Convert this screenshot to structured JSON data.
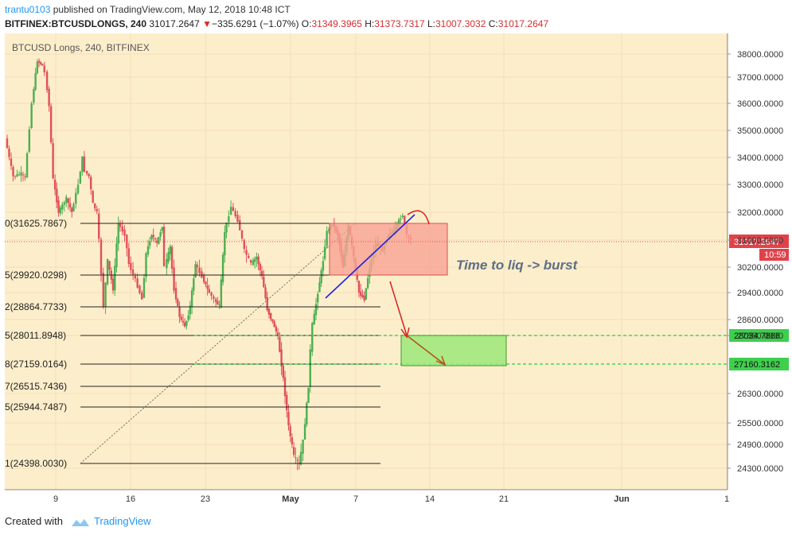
{
  "header": {
    "author": "trantu0103",
    "published_text": "published on TradingView.com, May 12, 2018 10:48 ICT",
    "symbol": "BITFINEX:BTCUSDLONGS, 240",
    "last": "31017.2647",
    "change_arrow": "▼",
    "change": "−335.6291 (−1.07%)",
    "o_label": "O:",
    "o_value": "31349.3965",
    "h_label": "H:",
    "h_value": "31373.7317",
    "l_label": "L:",
    "l_value": "31007.3032",
    "c_label": "C:",
    "c_value": "31017.2647"
  },
  "footer": {
    "created_with": "Created with",
    "brand": "TradingView"
  },
  "colors": {
    "background": "#fdeecb",
    "up": "#4caf50",
    "down": "#e0505a",
    "grid": "#f3dfb4"
  },
  "chart_data": {
    "type": "candlestick",
    "title": "BTCUSD Longs, 240, BITFINEX",
    "x_ticks": [
      "9",
      "16",
      "23",
      "May",
      "7",
      "14",
      "21",
      "Jun",
      "1"
    ],
    "y_ticks": [
      "38000.0000",
      "37000.0000",
      "36000.0000",
      "35000.0000",
      "34000.0000",
      "33000.0000",
      "32000.0000",
      "31000.0000",
      "30200.0000",
      "29400.0000",
      "28600.0000",
      "27850.0000",
      "26300.0000",
      "25500.0000",
      "24900.0000",
      "24300.0000"
    ],
    "ylim": [
      23600,
      38400
    ],
    "price_path": [
      [
        0,
        34700
      ],
      [
        6,
        33300
      ],
      [
        12,
        33400
      ],
      [
        15,
        33250
      ],
      [
        20,
        36000
      ],
      [
        24,
        37700
      ],
      [
        28,
        37500
      ],
      [
        30,
        37200
      ],
      [
        33,
        35900
      ],
      [
        36,
        33200
      ],
      [
        40,
        32000
      ],
      [
        46,
        32500
      ],
      [
        50,
        32000
      ],
      [
        55,
        33000
      ],
      [
        58,
        34000
      ],
      [
        60,
        33500
      ],
      [
        63,
        33300
      ],
      [
        66,
        32300
      ],
      [
        69,
        32000
      ],
      [
        74,
        29000
      ],
      [
        77,
        30400
      ],
      [
        81,
        29500
      ],
      [
        85,
        31600
      ],
      [
        90,
        31200
      ],
      [
        93,
        30300
      ],
      [
        98,
        29800
      ],
      [
        103,
        29200
      ],
      [
        106,
        30600
      ],
      [
        110,
        31200
      ],
      [
        114,
        30900
      ],
      [
        118,
        31500
      ],
      [
        120,
        30200
      ],
      [
        124,
        30800
      ],
      [
        127,
        29500
      ],
      [
        131,
        28700
      ],
      [
        135,
        28300
      ],
      [
        139,
        29000
      ],
      [
        143,
        30300
      ],
      [
        148,
        29900
      ],
      [
        152,
        29500
      ],
      [
        157,
        29200
      ],
      [
        161,
        29000
      ],
      [
        165,
        31300
      ],
      [
        170,
        32200
      ],
      [
        175,
        31700
      ],
      [
        180,
        30700
      ],
      [
        185,
        30300
      ],
      [
        189,
        30500
      ],
      [
        193,
        29900
      ],
      [
        197,
        28900
      ],
      [
        201,
        28500
      ],
      [
        205,
        27800
      ],
      [
        209,
        26700
      ],
      [
        213,
        25400
      ],
      [
        217,
        24600
      ],
      [
        221,
        24400
      ],
      [
        224,
        25000
      ],
      [
        228,
        26500
      ],
      [
        231,
        28400
      ],
      [
        235,
        29400
      ],
      [
        239,
        30400
      ],
      [
        242,
        31300
      ],
      [
        246,
        31600
      ],
      [
        250,
        31200
      ],
      [
        254,
        30200
      ],
      [
        258,
        31500
      ],
      [
        262,
        30500
      ],
      [
        266,
        29400
      ],
      [
        270,
        29200
      ],
      [
        274,
        30200
      ],
      [
        279,
        30900
      ],
      [
        284,
        30700
      ],
      [
        288,
        31200
      ],
      [
        292,
        31300
      ],
      [
        296,
        31700
      ],
      [
        299,
        31900
      ],
      [
        302,
        31200
      ],
      [
        305,
        31017
      ]
    ],
    "fib_levels": [
      {
        "label": "0(31625.7867)",
        "value": 31625.7867
      },
      {
        "label": "5(29920.0298)",
        "value": 29920.0298
      },
      {
        "label": "2(28864.7733)",
        "value": 28864.7733
      },
      {
        "label": "5(28011.8948)",
        "value": 28011.8948
      },
      {
        "label": "8(27159.0164)",
        "value": 27159.0164
      },
      {
        "label": "7(26515.7436)",
        "value": 26515.7436
      },
      {
        "label": "5(25944.7487)",
        "value": 25944.7487
      },
      {
        "label": "1(24398.0030)",
        "value": 24398.003
      }
    ],
    "horizontal_lines": [
      {
        "label": "28034.7866",
        "value": 28034.7866,
        "color": "#2ecc40"
      },
      {
        "label": "27160.3162",
        "value": 27160.3162,
        "color": "#2ecc40"
      }
    ],
    "current_price": {
      "label": "31017.2647",
      "value": 31017.2647,
      "time_label": "10:59"
    },
    "annotation": "Time to liq -> burst",
    "red_box": {
      "top": 31625,
      "bottom": 29920
    },
    "green_box": {
      "top": 28034,
      "bottom": 27160
    }
  }
}
